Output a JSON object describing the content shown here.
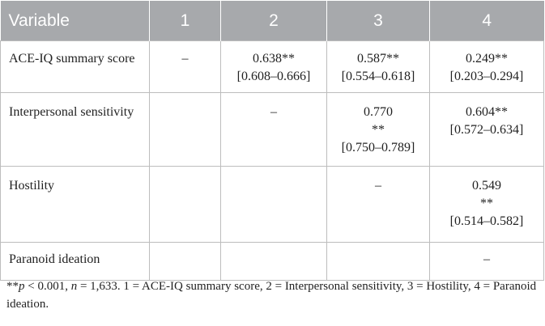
{
  "table": {
    "headers": [
      "Variable",
      "1",
      "2",
      "3",
      "4"
    ],
    "rows": [
      {
        "variable": "ACE-IQ summary score",
        "cells": [
          [
            "–"
          ],
          [
            "0.638**",
            "[0.608–0.666]"
          ],
          [
            "0.587**",
            "[0.554–0.618]"
          ],
          [
            "0.249**",
            "[0.203–0.294]"
          ]
        ]
      },
      {
        "variable": "Interpersonal sensitivity",
        "cells": [
          [
            ""
          ],
          [
            "–"
          ],
          [
            "0.770",
            "**",
            "[0.750–0.789]"
          ],
          [
            "0.604**",
            "[0.572–0.634]"
          ]
        ]
      },
      {
        "variable": "Hostility",
        "cells": [
          [
            ""
          ],
          [
            ""
          ],
          [
            "–"
          ],
          [
            "0.549",
            "**",
            "[0.514–0.582]"
          ]
        ]
      },
      {
        "variable": "Paranoid ideation",
        "cells": [
          [
            ""
          ],
          [
            ""
          ],
          [
            ""
          ],
          [
            "–"
          ]
        ]
      }
    ]
  },
  "footnote": {
    "stars": "**",
    "p": "p",
    "p_rest": " < 0.001, ",
    "n": "n",
    "n_rest": " = 1,633. 1 = ACE-IQ summary score, 2 = Interpersonal sensitivity, 3 = Hostility, 4 = Paranoid ideation."
  }
}
